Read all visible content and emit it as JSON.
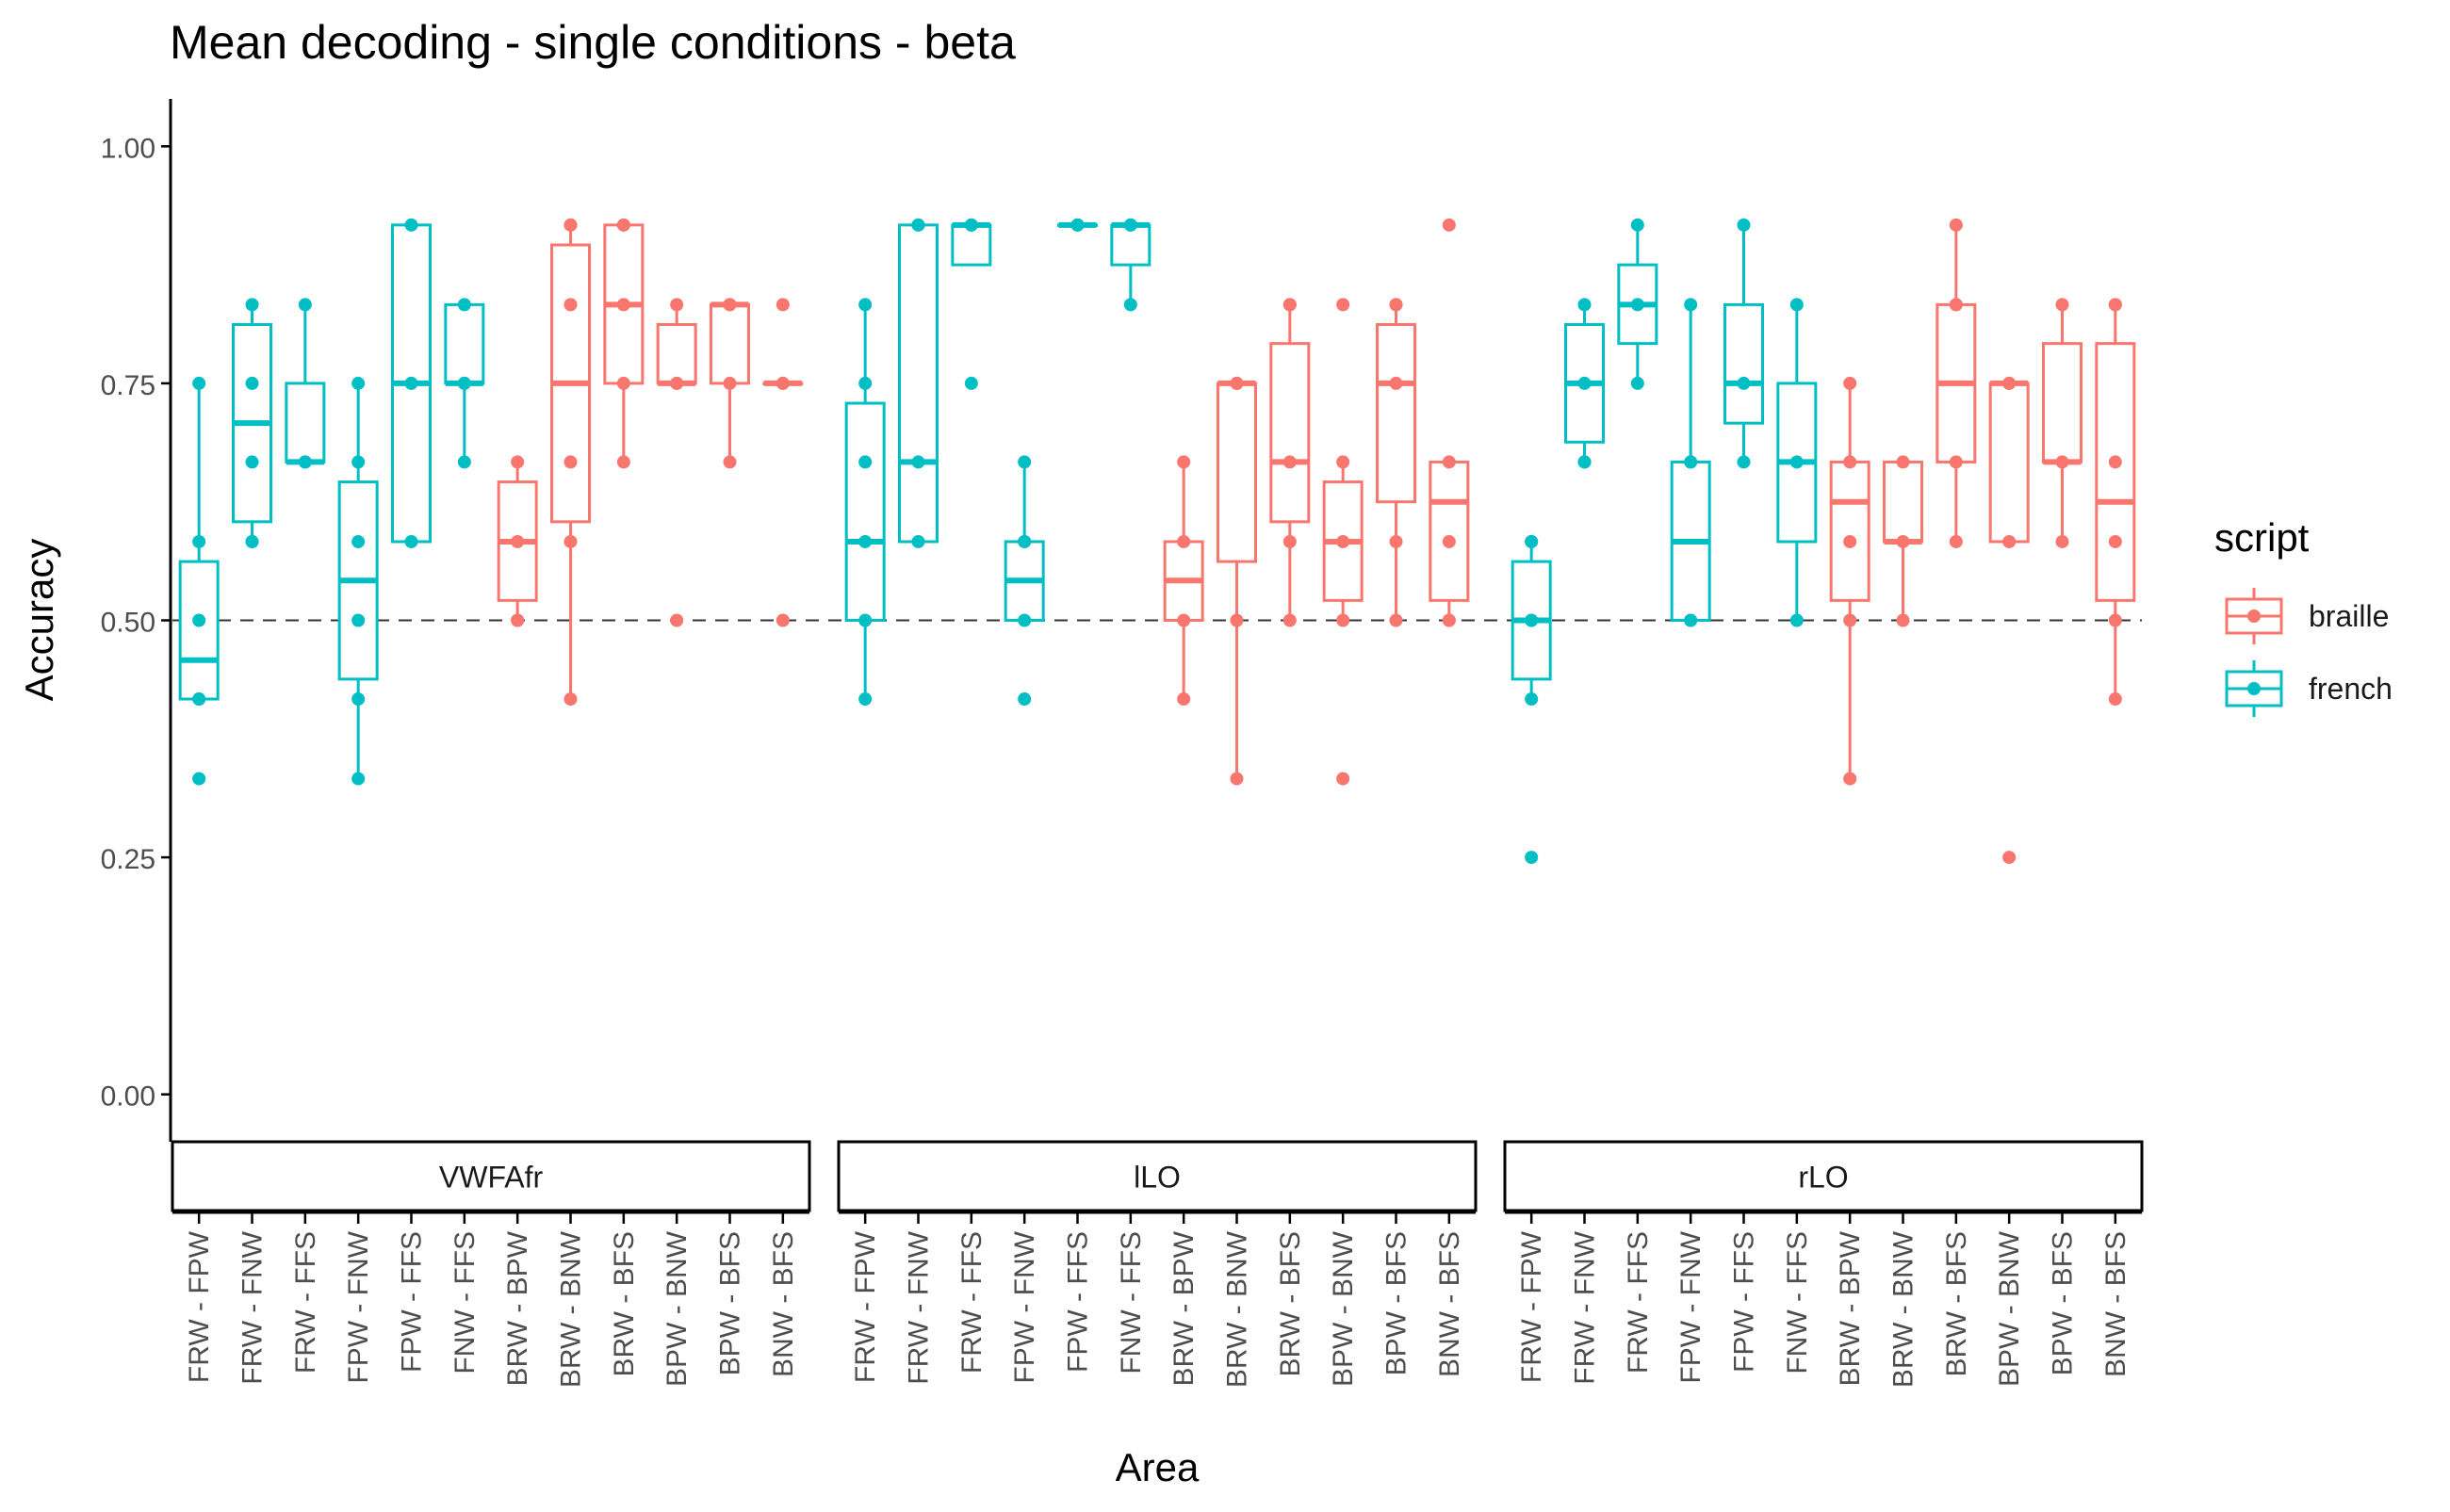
{
  "chart_data": {
    "type": "box",
    "title": "Mean decoding - single conditions - beta",
    "xlabel": "Area",
    "ylabel": "Accuracy",
    "ylim": [
      -0.05,
      1.05
    ],
    "yticks": [
      "0.00",
      "0.25",
      "0.50",
      "0.75",
      "1.00"
    ],
    "reference_line": 0.5,
    "legend": {
      "title": "script",
      "position": "right",
      "entries": [
        {
          "name": "braille",
          "color": "#F8766D"
        },
        {
          "name": "french",
          "color": "#00BFC4"
        }
      ]
    },
    "grid": false,
    "colors": {
      "braille": "#F8766D",
      "french": "#00BFC4"
    },
    "categories": [
      "FRW - FPW",
      "FRW - FNW",
      "FRW - FFS",
      "FPW - FNW",
      "FPW - FFS",
      "FNW - FFS",
      "BRW - BPW",
      "BRW - BNW",
      "BRW - BFS",
      "BPW - BNW",
      "BPW - BFS",
      "BNW - BFS"
    ],
    "panels": [
      {
        "name": "VWFAfr",
        "boxes": [
          {
            "category": "FRW - FPW",
            "script": "french",
            "min": 0.417,
            "q1": 0.417,
            "median": 0.458,
            "q3": 0.562,
            "max": 0.75,
            "points": [
              0.75,
              0.583,
              0.5,
              0.417,
              0.417,
              0.333
            ]
          },
          {
            "category": "FRW - FNW",
            "script": "french",
            "min": 0.583,
            "q1": 0.604,
            "median": 0.708,
            "q3": 0.812,
            "max": 0.833,
            "points": [
              0.833,
              0.75,
              0.667,
              0.583,
              0.583
            ]
          },
          {
            "category": "FRW - FFS",
            "script": "french",
            "min": 0.667,
            "q1": 0.667,
            "median": 0.667,
            "q3": 0.75,
            "max": 0.833,
            "points": [
              0.833,
              0.667,
              0.667
            ]
          },
          {
            "category": "FPW - FNW",
            "script": "french",
            "min": 0.333,
            "q1": 0.438,
            "median": 0.542,
            "q3": 0.646,
            "max": 0.75,
            "points": [
              0.75,
              0.667,
              0.583,
              0.5,
              0.417,
              0.333
            ]
          },
          {
            "category": "FPW - FFS",
            "script": "french",
            "min": 0.583,
            "q1": 0.583,
            "median": 0.75,
            "q3": 0.917,
            "max": 0.917,
            "points": [
              0.917,
              0.75,
              0.583
            ]
          },
          {
            "category": "FNW - FFS",
            "script": "french",
            "min": 0.667,
            "q1": 0.75,
            "median": 0.75,
            "q3": 0.833,
            "max": 0.833,
            "points": [
              0.833,
              0.75,
              0.75,
              0.667
            ]
          },
          {
            "category": "BRW - BPW",
            "script": "braille",
            "min": 0.5,
            "q1": 0.521,
            "median": 0.583,
            "q3": 0.646,
            "max": 0.667,
            "points": [
              0.667,
              0.583,
              0.5,
              0.5
            ]
          },
          {
            "category": "BRW - BNW",
            "script": "braille",
            "min": 0.417,
            "q1": 0.604,
            "median": 0.75,
            "q3": 0.896,
            "max": 0.917,
            "points": [
              0.917,
              0.917,
              0.833,
              0.667,
              0.583,
              0.417
            ]
          },
          {
            "category": "BRW - BFS",
            "script": "braille",
            "min": 0.667,
            "q1": 0.75,
            "median": 0.833,
            "q3": 0.917,
            "max": 0.917,
            "points": [
              0.917,
              0.917,
              0.833,
              0.75,
              0.667
            ]
          },
          {
            "category": "BPW - BNW",
            "script": "braille",
            "min": 0.75,
            "q1": 0.75,
            "median": 0.75,
            "q3": 0.812,
            "max": 0.833,
            "points": [
              0.833,
              0.75,
              0.75,
              0.5
            ]
          },
          {
            "category": "BPW - BFS",
            "script": "braille",
            "min": 0.667,
            "q1": 0.75,
            "median": 0.833,
            "q3": 0.833,
            "max": 0.833,
            "points": [
              0.833,
              0.833,
              0.75,
              0.667
            ]
          },
          {
            "category": "BNW - BFS",
            "script": "braille",
            "min": 0.75,
            "q1": 0.75,
            "median": 0.75,
            "q3": 0.75,
            "max": 0.75,
            "points": [
              0.833,
              0.75,
              0.75,
              0.5
            ]
          }
        ]
      },
      {
        "name": "lLO",
        "boxes": [
          {
            "category": "FRW - FPW",
            "script": "french",
            "min": 0.417,
            "q1": 0.5,
            "median": 0.583,
            "q3": 0.729,
            "max": 0.833,
            "points": [
              0.833,
              0.75,
              0.667,
              0.583,
              0.5,
              0.417
            ]
          },
          {
            "category": "FRW - FNW",
            "script": "french",
            "min": 0.583,
            "q1": 0.583,
            "median": 0.667,
            "q3": 0.917,
            "max": 0.917,
            "points": [
              0.917,
              0.917,
              0.667,
              0.583
            ]
          },
          {
            "category": "FRW - FFS",
            "script": "french",
            "min": 0.875,
            "q1": 0.875,
            "median": 0.917,
            "q3": 0.917,
            "max": 0.917,
            "points": [
              0.917,
              0.917,
              0.917,
              0.75
            ]
          },
          {
            "category": "FPW - FNW",
            "script": "french",
            "min": 0.5,
            "q1": 0.5,
            "median": 0.542,
            "q3": 0.583,
            "max": 0.667,
            "points": [
              0.667,
              0.583,
              0.583,
              0.5,
              0.417
            ]
          },
          {
            "category": "FPW - FFS",
            "script": "french",
            "min": 0.917,
            "q1": 0.917,
            "median": 0.917,
            "q3": 0.917,
            "max": 0.917,
            "points": [
              0.917,
              0.917,
              0.917
            ]
          },
          {
            "category": "FNW - FFS",
            "script": "french",
            "min": 0.833,
            "q1": 0.875,
            "median": 0.917,
            "q3": 0.917,
            "max": 0.917,
            "points": [
              0.917,
              0.917,
              0.917,
              0.833
            ]
          },
          {
            "category": "BRW - BPW",
            "script": "braille",
            "min": 0.417,
            "q1": 0.5,
            "median": 0.542,
            "q3": 0.583,
            "max": 0.667,
            "points": [
              0.667,
              0.583,
              0.5,
              0.417
            ]
          },
          {
            "category": "BRW - BNW",
            "script": "braille",
            "min": 0.333,
            "q1": 0.562,
            "median": 0.75,
            "q3": 0.75,
            "max": 0.75,
            "points": [
              0.75,
              0.75,
              0.5,
              0.333
            ]
          },
          {
            "category": "BRW - BFS",
            "script": "braille",
            "min": 0.5,
            "q1": 0.604,
            "median": 0.667,
            "q3": 0.792,
            "max": 0.833,
            "points": [
              0.833,
              0.833,
              0.667,
              0.583,
              0.5
            ]
          },
          {
            "category": "BPW - BNW",
            "script": "braille",
            "min": 0.5,
            "q1": 0.521,
            "median": 0.583,
            "q3": 0.646,
            "max": 0.667,
            "points": [
              0.833,
              0.667,
              0.583,
              0.5,
              0.333
            ]
          },
          {
            "category": "BPW - BFS",
            "script": "braille",
            "min": 0.5,
            "q1": 0.625,
            "median": 0.75,
            "q3": 0.812,
            "max": 0.833,
            "points": [
              0.833,
              0.833,
              0.75,
              0.583,
              0.5
            ]
          },
          {
            "category": "BNW - BFS",
            "script": "braille",
            "min": 0.5,
            "q1": 0.521,
            "median": 0.625,
            "q3": 0.667,
            "max": 0.667,
            "points": [
              0.917,
              0.667,
              0.583,
              0.5,
              0.5
            ]
          }
        ]
      },
      {
        "name": "rLO",
        "boxes": [
          {
            "category": "FRW - FPW",
            "script": "french",
            "min": 0.417,
            "q1": 0.438,
            "median": 0.5,
            "q3": 0.562,
            "max": 0.583,
            "points": [
              0.583,
              0.583,
              0.5,
              0.5,
              0.417,
              0.25
            ]
          },
          {
            "category": "FRW - FNW",
            "script": "french",
            "min": 0.667,
            "q1": 0.688,
            "median": 0.75,
            "q3": 0.812,
            "max": 0.833,
            "points": [
              0.833,
              0.75,
              0.667,
              0.667
            ]
          },
          {
            "category": "FRW - FFS",
            "script": "french",
            "min": 0.75,
            "q1": 0.792,
            "median": 0.833,
            "q3": 0.875,
            "max": 0.917,
            "points": [
              0.917,
              0.833,
              0.75
            ]
          },
          {
            "category": "FPW - FNW",
            "script": "french",
            "min": 0.5,
            "q1": 0.5,
            "median": 0.583,
            "q3": 0.667,
            "max": 0.833,
            "points": [
              0.833,
              0.667,
              0.667,
              0.5,
              0.5
            ]
          },
          {
            "category": "FPW - FFS",
            "script": "french",
            "min": 0.667,
            "q1": 0.708,
            "median": 0.75,
            "q3": 0.833,
            "max": 0.917,
            "points": [
              0.917,
              0.75,
              0.667
            ]
          },
          {
            "category": "FNW - FFS",
            "script": "french",
            "min": 0.5,
            "q1": 0.583,
            "median": 0.667,
            "q3": 0.75,
            "max": 0.833,
            "points": [
              0.833,
              0.667,
              0.5
            ]
          },
          {
            "category": "BRW - BPW",
            "script": "braille",
            "min": 0.333,
            "q1": 0.521,
            "median": 0.625,
            "q3": 0.667,
            "max": 0.75,
            "points": [
              0.75,
              0.667,
              0.583,
              0.5,
              0.333
            ]
          },
          {
            "category": "BRW - BNW",
            "script": "braille",
            "min": 0.5,
            "q1": 0.583,
            "median": 0.583,
            "q3": 0.667,
            "max": 0.667,
            "points": [
              0.667,
              0.583,
              0.5
            ]
          },
          {
            "category": "BRW - BFS",
            "script": "braille",
            "min": 0.583,
            "q1": 0.667,
            "median": 0.75,
            "q3": 0.833,
            "max": 0.917,
            "points": [
              0.917,
              0.833,
              0.833,
              0.667,
              0.583
            ]
          },
          {
            "category": "BPW - BNW",
            "script": "braille",
            "min": 0.583,
            "q1": 0.583,
            "median": 0.75,
            "q3": 0.75,
            "max": 0.75,
            "points": [
              0.75,
              0.75,
              0.583,
              0.25
            ]
          },
          {
            "category": "BPW - BFS",
            "script": "braille",
            "min": 0.583,
            "q1": 0.667,
            "median": 0.667,
            "q3": 0.792,
            "max": 0.833,
            "points": [
              0.833,
              0.667,
              0.583
            ]
          },
          {
            "category": "BNW - BFS",
            "script": "braille",
            "min": 0.417,
            "q1": 0.521,
            "median": 0.625,
            "q3": 0.792,
            "max": 0.833,
            "points": [
              0.833,
              0.833,
              0.667,
              0.583,
              0.5,
              0.417
            ]
          }
        ]
      }
    ]
  }
}
